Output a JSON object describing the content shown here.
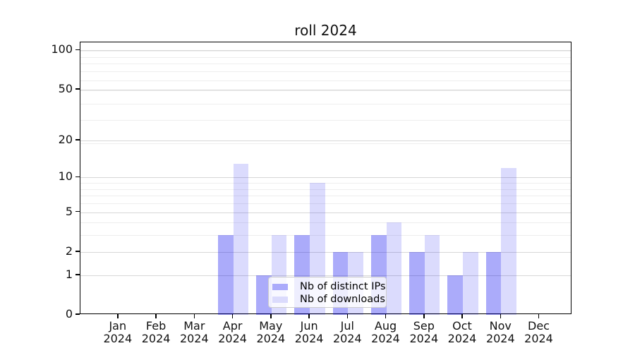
{
  "title": "roll 2024",
  "legend": {
    "items": [
      {
        "label": "Nb of distinct IPs",
        "swatch_color": "#ababfb",
        "fill": "rgba(0,0,240,0.33)"
      },
      {
        "label": "Nb of downloads",
        "swatch_color": "#dbdbfc",
        "fill": "rgba(0,0,240,0.14)"
      }
    ]
  },
  "chart_data": {
    "type": "bar",
    "title": "roll 2024",
    "categories": [
      "Jan 2024",
      "Feb 2024",
      "Mar 2024",
      "Apr 2024",
      "May 2024",
      "Jun 2024",
      "Jul 2024",
      "Aug 2024",
      "Sep 2024",
      "Oct 2024",
      "Nov 2024",
      "Dec 2024"
    ],
    "series": [
      {
        "name": "Nb of distinct IPs",
        "values": [
          0,
          0,
          0,
          3,
          1,
          3,
          2,
          3,
          2,
          1,
          2,
          0
        ]
      },
      {
        "name": "Nb of downloads",
        "values": [
          0,
          0,
          0,
          13,
          3,
          9,
          2,
          4,
          3,
          2,
          12,
          0
        ]
      }
    ],
    "xlabel": "",
    "ylabel": "",
    "yscale": "log1p",
    "yticks": [
      0,
      1,
      2,
      5,
      10,
      20,
      50,
      100
    ],
    "ylim": [
      0,
      115
    ],
    "grid": true,
    "legend_position": "lower center"
  },
  "colors": {
    "bar_distinct_ips": "rgba(0,0,240,0.33)",
    "bar_downloads": "rgba(0,0,240,0.14)",
    "grid_major": "#d7d7d7",
    "grid_minor": "#eeeeee",
    "spine": "#000000",
    "text": "#111111",
    "legend_border": "#cccccc",
    "background": "#ffffff"
  }
}
